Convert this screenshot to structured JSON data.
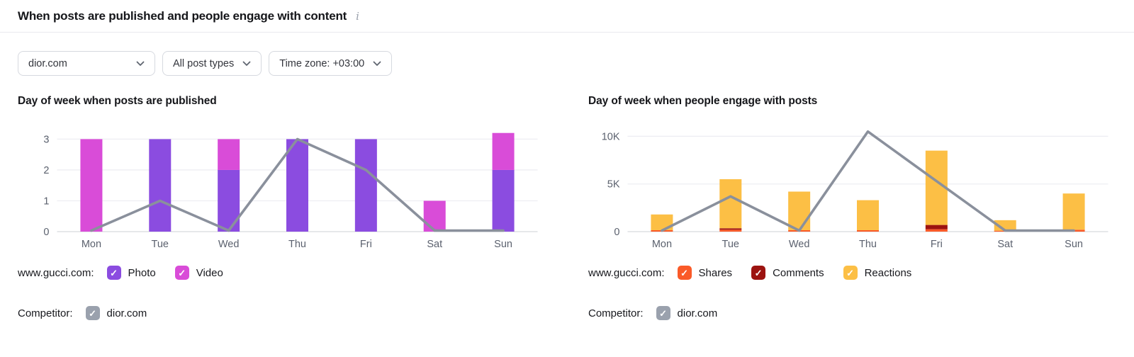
{
  "header": {
    "title": "When posts are published and people engage with content",
    "info_icon": "i"
  },
  "filters": [
    {
      "label": "dior.com"
    },
    {
      "label": "All post types"
    },
    {
      "label": "Time zone: +03:00"
    }
  ],
  "icons": {
    "check": "✓"
  },
  "colors": {
    "photo": "#8b4ce0",
    "video": "#d94cd8",
    "shares": "#fa5a28",
    "comments": "#9c1310",
    "reactions": "#fcbf45",
    "competitor_line": "#8a909c",
    "competitor_checkbox": "#9aa1ad",
    "grid": "#edeef2",
    "grid_zero": "#d7d9de",
    "axis_text": "#5b616e"
  },
  "chart_data": [
    {
      "type": "bar+line",
      "title": "Day of week when posts are published",
      "categories": [
        "Mon",
        "Tue",
        "Wed",
        "Thu",
        "Fri",
        "Sat",
        "Sun"
      ],
      "ymax": 3.4,
      "yticks": [
        {
          "label": "3",
          "value": 3
        },
        {
          "label": "2",
          "value": 2
        },
        {
          "label": "1",
          "value": 1
        },
        {
          "label": "0",
          "value": 0
        }
      ],
      "series": [
        {
          "name": "Photo",
          "kind": "bar",
          "color_key": "photo",
          "values": [
            0,
            3,
            2,
            3,
            3,
            0,
            2
          ]
        },
        {
          "name": "Video",
          "kind": "bar",
          "color_key": "video",
          "values": [
            3,
            0,
            1,
            0,
            0,
            1,
            1.2
          ]
        },
        {
          "name": "dior.com",
          "kind": "line",
          "color_key": "competitor_line",
          "values": [
            0,
            1,
            0,
            3,
            2,
            0,
            0
          ]
        }
      ],
      "legend": {
        "owner": "www.gucci.com:",
        "items": [
          {
            "label": "Photo",
            "color_key": "photo"
          },
          {
            "label": "Video",
            "color_key": "video"
          }
        ]
      },
      "competitor": {
        "label": "Competitor:",
        "name": "dior.com"
      }
    },
    {
      "type": "bar+line",
      "title": "Day of week when people engage with posts",
      "categories": [
        "Mon",
        "Tue",
        "Wed",
        "Thu",
        "Fri",
        "Sat",
        "Sun"
      ],
      "ymax": 11000,
      "yticks": [
        {
          "label": "10K",
          "value": 10000
        },
        {
          "label": "5K",
          "value": 5000
        },
        {
          "label": "0",
          "value": 0
        }
      ],
      "series": [
        {
          "name": "Shares",
          "kind": "bar",
          "color_key": "shares",
          "values": [
            150,
            200,
            150,
            150,
            250,
            100,
            200
          ]
        },
        {
          "name": "Comments",
          "kind": "bar",
          "color_key": "comments",
          "values": [
            0,
            150,
            0,
            0,
            450,
            0,
            0
          ]
        },
        {
          "name": "Reactions",
          "kind": "bar",
          "color_key": "reactions",
          "values": [
            1650,
            5150,
            4050,
            3150,
            7800,
            1100,
            3800
          ]
        },
        {
          "name": "dior.com",
          "kind": "line",
          "color_key": "competitor_line",
          "values": [
            0,
            3700,
            0,
            10500,
            5300,
            0,
            0
          ]
        }
      ],
      "legend": {
        "owner": "www.gucci.com:",
        "items": [
          {
            "label": "Shares",
            "color_key": "shares"
          },
          {
            "label": "Comments",
            "color_key": "comments"
          },
          {
            "label": "Reactions",
            "color_key": "reactions"
          }
        ]
      },
      "competitor": {
        "label": "Competitor:",
        "name": "dior.com"
      }
    }
  ]
}
